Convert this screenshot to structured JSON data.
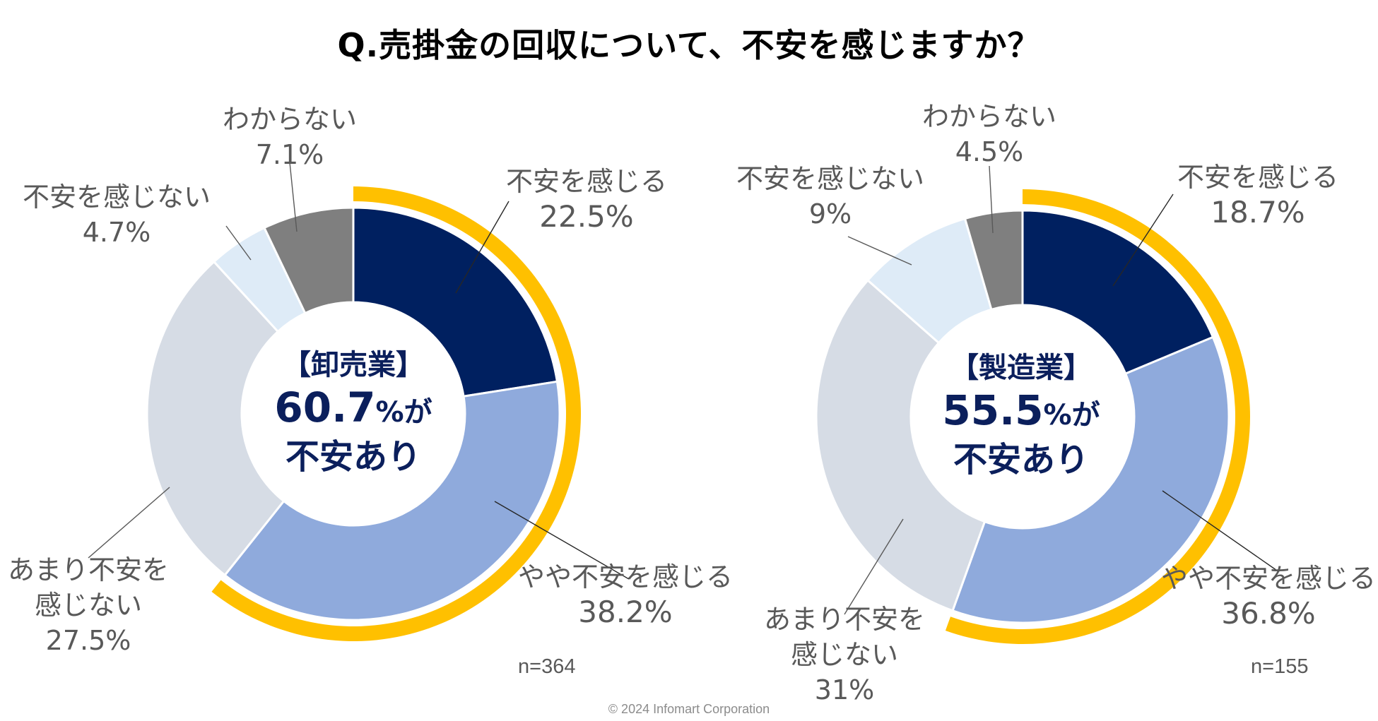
{
  "title": "Q.売掛金の回収について、不安を感じますか？",
  "copyright": "© 2024 Infomart Corporation",
  "colors": {
    "fuan_kanjiru": "#002060",
    "yaya_fuan": "#8faadc",
    "amari_fuan": "#d6dce5",
    "kanjinai": "#deebf7",
    "wakaranai": "#7f7f7f",
    "ring": "#ffc000",
    "center_text": "#0b1f5c"
  },
  "chart_data": [
    {
      "type": "pie",
      "variant": "donut",
      "segment": "【卸売業】",
      "center_value": "60.7",
      "center_unit": "%が",
      "center_sub": "不安あり",
      "n": "n=364",
      "categories": [
        "不安を感じる",
        "やや不安を感じる",
        "あまり不安を感じない",
        "不安を感じない",
        "わからない"
      ],
      "values": [
        22.5,
        38.2,
        27.5,
        4.7,
        7.1
      ],
      "value_labels": [
        "22.5",
        "38.2",
        "27.5",
        "4.7",
        "7.1"
      ],
      "highlight_total": 60.7
    },
    {
      "type": "pie",
      "variant": "donut",
      "segment": "【製造業】",
      "center_value": "55.5",
      "center_unit": "%が",
      "center_sub": "不安あり",
      "n": "n=155",
      "categories": [
        "不安を感じる",
        "やや不安を感じる",
        "あまり不安を感じない",
        "不安を感じない",
        "わからない"
      ],
      "values": [
        18.7,
        36.8,
        31,
        9,
        4.5
      ],
      "value_labels": [
        "18.7",
        "36.8",
        "31",
        "9",
        "4.5"
      ],
      "highlight_total": 55.5
    }
  ],
  "labels": {
    "left": {
      "fuan_name": "不安を感じる",
      "fuan_pct": "22.5%",
      "yaya_name": "やや不安を感じる",
      "yaya_pct": "38.2%",
      "amari_name1": "あまり不安を",
      "amari_name2": "感じない",
      "amari_pct": "27.5%",
      "kanjinai_name": "不安を感じない",
      "kanjinai_pct": "4.7%",
      "wakaranai_name": "わからない",
      "wakaranai_pct": "7.1%"
    },
    "right": {
      "fuan_name": "不安を感じる",
      "fuan_pct": "18.7%",
      "yaya_name": "やや不安を感じる",
      "yaya_pct": "36.8%",
      "amari_name1": "あまり不安を",
      "amari_name2": "感じない",
      "amari_pct": "31%",
      "kanjinai_name": "不安を感じない",
      "kanjinai_pct": "9%",
      "wakaranai_name": "わからない",
      "wakaranai_pct": "4.5%"
    }
  }
}
